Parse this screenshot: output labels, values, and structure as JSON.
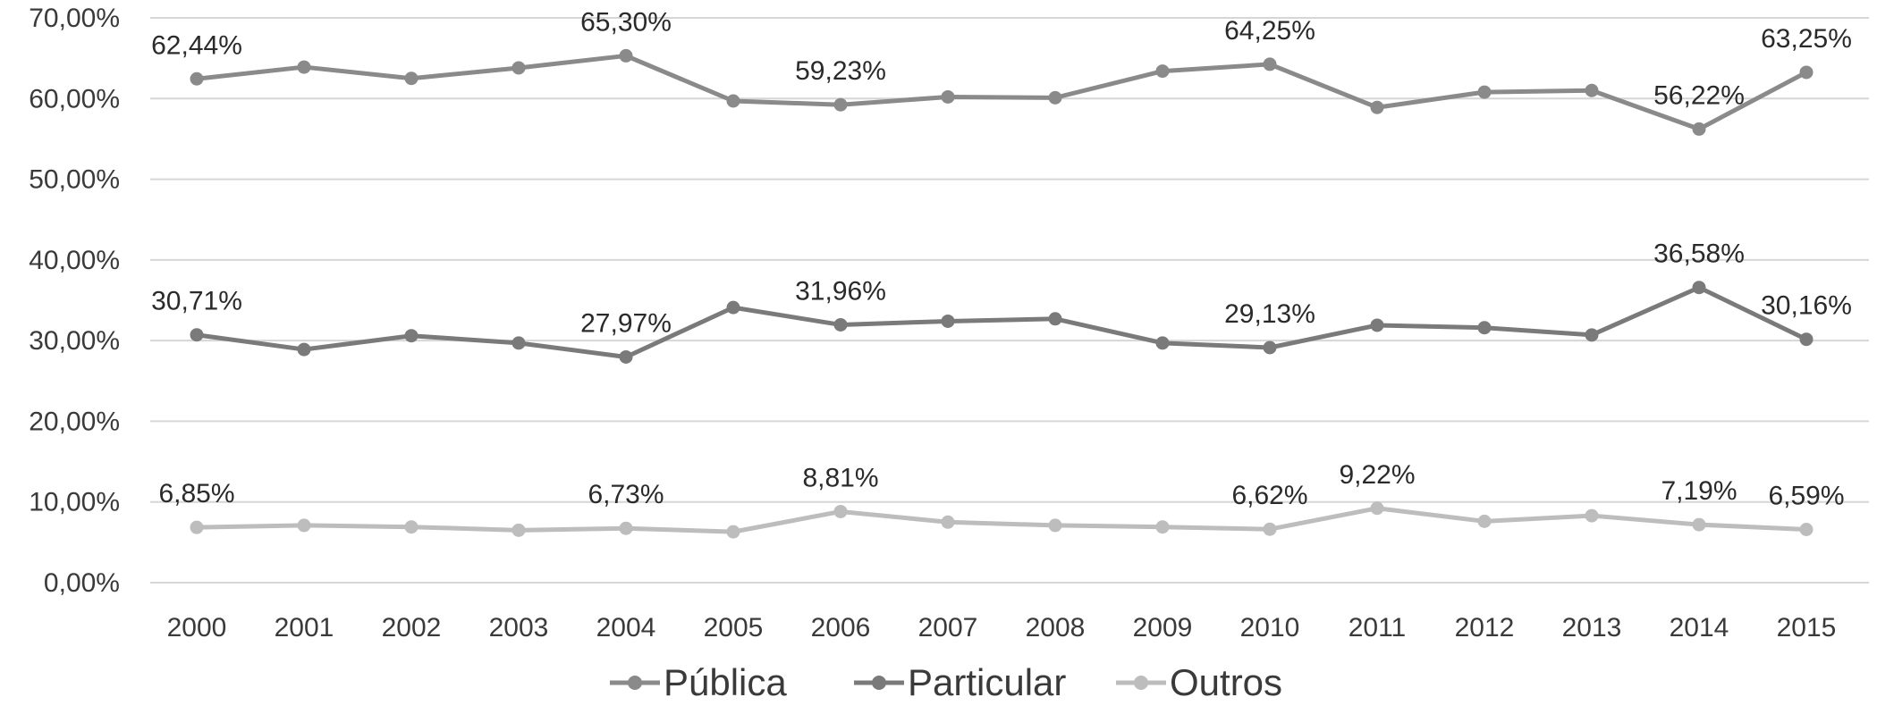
{
  "chart_data": {
    "type": "line",
    "title": "",
    "xlabel": "",
    "ylabel": "",
    "categories": [
      "2000",
      "2001",
      "2002",
      "2003",
      "2004",
      "2005",
      "2006",
      "2007",
      "2008",
      "2009",
      "2010",
      "2011",
      "2012",
      "2013",
      "2014",
      "2015"
    ],
    "ylim": [
      0,
      70
    ],
    "yticks": [
      0,
      10,
      20,
      30,
      40,
      50,
      60,
      70
    ],
    "ytick_labels": [
      "0,00%",
      "10,00%",
      "20,00%",
      "30,00%",
      "40,00%",
      "50,00%",
      "60,00%",
      "70,00%"
    ],
    "grid": true,
    "legend_position": "bottom",
    "series": [
      {
        "name": "Pública",
        "color": "#8a8a8a",
        "values": [
          62.44,
          63.9,
          62.5,
          63.8,
          65.3,
          59.7,
          59.23,
          60.2,
          60.1,
          63.4,
          64.25,
          58.9,
          60.8,
          61.0,
          56.22,
          63.25
        ],
        "labels": {
          "0": "62,44%",
          "4": "65,30%",
          "6": "59,23%",
          "10": "64,25%",
          "14": "56,22%",
          "15": "63,25%"
        }
      },
      {
        "name": "Particular",
        "color": "#7a7a7a",
        "values": [
          30.71,
          28.9,
          30.6,
          29.7,
          27.97,
          34.1,
          31.96,
          32.4,
          32.7,
          29.7,
          29.13,
          31.9,
          31.6,
          30.7,
          36.58,
          30.16
        ],
        "labels": {
          "0": "30,71%",
          "4": "27,97%",
          "6": "31,96%",
          "10": "29,13%",
          "14": "36,58%",
          "15": "30,16%"
        }
      },
      {
        "name": "Outros",
        "color": "#bdbdbd",
        "values": [
          6.85,
          7.1,
          6.9,
          6.5,
          6.73,
          6.3,
          8.81,
          7.5,
          7.1,
          6.9,
          6.62,
          9.22,
          7.6,
          8.3,
          7.19,
          6.59
        ],
        "labels": {
          "0": "6,85%",
          "4": "6,73%",
          "6": "8,81%",
          "10": "6,62%",
          "11": "9,22%",
          "14": "7,19%",
          "15": "6,59%"
        }
      }
    ]
  }
}
